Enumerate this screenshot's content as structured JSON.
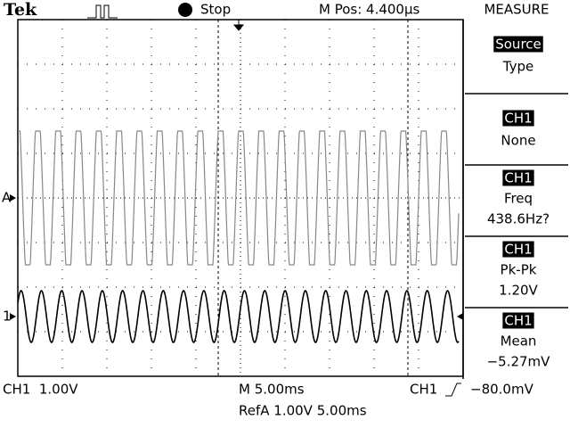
{
  "header": {
    "brand": "Tek",
    "status": "Stop",
    "position": "M Pos: 4.400µs",
    "menu_title": "MEASURE"
  },
  "menu": [
    {
      "label": "Source",
      "value": "Type"
    },
    {
      "label": "CH1",
      "value": "None"
    },
    {
      "label": "CH1",
      "measurement": "Freq",
      "value": "438.6Hz?"
    },
    {
      "label": "CH1",
      "measurement": "Pk-Pk",
      "value": "1.20V"
    },
    {
      "label": "CH1",
      "measurement": "Mean",
      "value": "−5.27mV"
    }
  ],
  "markers": {
    "ref": "A",
    "channel": "1"
  },
  "footer": {
    "channel_scale": "CH1  1.00V",
    "time_scale": "M 5.00ms",
    "trigger_source": "CH1",
    "trigger_level": "−80.0mV",
    "ref": "RefA 1.00V 5.00ms"
  }
}
